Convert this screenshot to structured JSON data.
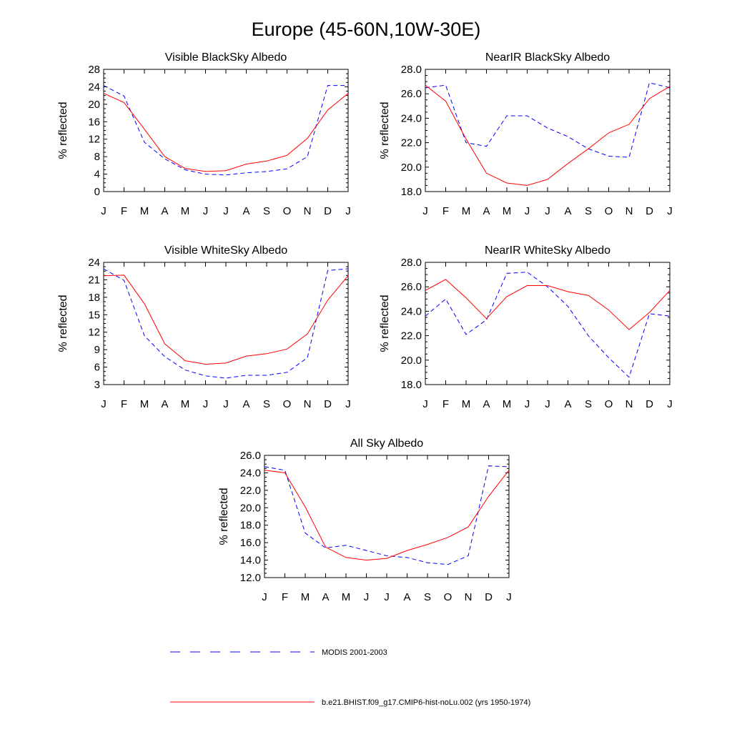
{
  "figure": {
    "title": "Europe (45-60N,10W-30E)",
    "legend": [
      {
        "label": "MODIS 2001-2003",
        "color": "#0000ff",
        "dash": true
      },
      {
        "label": "b.e21.BHIST.f09_g17.CMIP6-hist-noLu.002 (yrs 1950-1974)",
        "color": "#ff0000",
        "dash": false
      }
    ]
  },
  "chart_data": [
    {
      "type": "line",
      "title": "Visible BlackSky Albedo",
      "ylabel": "% reflected",
      "categories": [
        "J",
        "F",
        "M",
        "A",
        "M",
        "J",
        "J",
        "A",
        "S",
        "O",
        "N",
        "D",
        "J"
      ],
      "ylim": [
        0,
        28
      ],
      "yticks": [
        "0",
        "4",
        "8",
        "12",
        "16",
        "20",
        "24",
        "28"
      ],
      "series": [
        {
          "name": "MODIS 2001-2003",
          "color": "#0000ff",
          "dash": true,
          "values": [
            24.3,
            21.9,
            11.3,
            7.5,
            5.0,
            4.0,
            3.8,
            4.3,
            4.6,
            5.2,
            8.0,
            24.3,
            24.3
          ]
        },
        {
          "name": "b.e21.BHIST.f09_g17.CMIP6-hist-noLu.002 (yrs 1950-1974)",
          "color": "#ff0000",
          "dash": false,
          "values": [
            22.5,
            20.4,
            14.3,
            8.0,
            5.3,
            4.6,
            4.8,
            6.3,
            7.0,
            8.3,
            12.2,
            18.7,
            22.5
          ]
        }
      ]
    },
    {
      "type": "line",
      "title": "NearIR BlackSky Albedo",
      "ylabel": "% reflected",
      "categories": [
        "J",
        "F",
        "M",
        "A",
        "M",
        "J",
        "J",
        "A",
        "S",
        "O",
        "N",
        "D",
        "J"
      ],
      "ylim": [
        18,
        28
      ],
      "yticks": [
        "18.0",
        "20.0",
        "22.0",
        "24.0",
        "26.0",
        "28.0"
      ],
      "series": [
        {
          "name": "MODIS 2001-2003",
          "color": "#0000ff",
          "dash": true,
          "values": [
            26.5,
            26.7,
            22.0,
            21.7,
            24.2,
            24.2,
            23.2,
            22.5,
            21.5,
            20.9,
            20.8,
            26.9,
            26.5
          ]
        },
        {
          "name": "b.e21.BHIST.f09_g17.CMIP6-hist-noLu.002 (yrs 1950-1974)",
          "color": "#ff0000",
          "dash": false,
          "values": [
            26.7,
            25.4,
            22.3,
            19.5,
            18.7,
            18.5,
            19.0,
            20.3,
            21.5,
            22.8,
            23.5,
            25.6,
            26.6
          ]
        }
      ]
    },
    {
      "type": "line",
      "title": "Visible WhiteSky Albedo",
      "ylabel": "% reflected",
      "categories": [
        "J",
        "F",
        "M",
        "A",
        "M",
        "J",
        "J",
        "A",
        "S",
        "O",
        "N",
        "D",
        "J"
      ],
      "ylim": [
        3,
        24
      ],
      "yticks": [
        "3",
        "6",
        "9",
        "12",
        "15",
        "18",
        "21",
        "24"
      ],
      "series": [
        {
          "name": "MODIS 2001-2003",
          "color": "#0000ff",
          "dash": true,
          "values": [
            22.9,
            20.9,
            11.4,
            7.8,
            5.5,
            4.5,
            4.1,
            4.6,
            4.6,
            5.1,
            7.6,
            22.6,
            22.9
          ]
        },
        {
          "name": "b.e21.BHIST.f09_g17.CMIP6-hist-noLu.002 (yrs 1950-1974)",
          "color": "#ff0000",
          "dash": false,
          "values": [
            21.7,
            21.8,
            16.9,
            10.0,
            7.1,
            6.5,
            6.7,
            7.9,
            8.3,
            9.1,
            11.7,
            17.5,
            21.7
          ]
        }
      ]
    },
    {
      "type": "line",
      "title": "NearIR WhiteSky Albedo",
      "ylabel": "% reflected",
      "categories": [
        "J",
        "F",
        "M",
        "A",
        "M",
        "J",
        "J",
        "A",
        "S",
        "O",
        "N",
        "D",
        "J"
      ],
      "ylim": [
        18,
        28
      ],
      "yticks": [
        "18.0",
        "20.0",
        "22.0",
        "24.0",
        "26.0",
        "28.0"
      ],
      "series": [
        {
          "name": "MODIS 2001-2003",
          "color": "#0000ff",
          "dash": true,
          "values": [
            23.6,
            25.0,
            22.1,
            23.3,
            27.1,
            27.2,
            26.0,
            24.4,
            22.0,
            20.2,
            18.6,
            23.8,
            23.6
          ]
        },
        {
          "name": "b.e21.BHIST.f09_g17.CMIP6-hist-noLu.002 (yrs 1950-1974)",
          "color": "#ff0000",
          "dash": false,
          "values": [
            25.7,
            26.6,
            25.1,
            23.4,
            25.2,
            26.1,
            26.1,
            25.6,
            25.3,
            24.1,
            22.5,
            23.9,
            25.7
          ]
        }
      ]
    },
    {
      "type": "line",
      "title": "All Sky Albedo",
      "ylabel": "% reflected",
      "categories": [
        "J",
        "F",
        "M",
        "A",
        "M",
        "J",
        "J",
        "A",
        "S",
        "O",
        "N",
        "D",
        "J"
      ],
      "ylim": [
        12,
        26
      ],
      "yticks": [
        "12.0",
        "14.0",
        "16.0",
        "18.0",
        "20.0",
        "22.0",
        "24.0",
        "26.0"
      ],
      "series": [
        {
          "name": "MODIS 2001-2003",
          "color": "#0000ff",
          "dash": true,
          "values": [
            24.7,
            24.3,
            17.1,
            15.4,
            15.7,
            15.1,
            14.5,
            14.3,
            13.7,
            13.5,
            14.5,
            24.8,
            24.7
          ]
        },
        {
          "name": "b.e21.BHIST.f09_g17.CMIP6-hist-noLu.002 (yrs 1950-1974)",
          "color": "#ff0000",
          "dash": false,
          "values": [
            24.3,
            24.0,
            20.1,
            15.5,
            14.3,
            14.0,
            14.2,
            15.1,
            15.8,
            16.6,
            17.8,
            21.3,
            24.3
          ]
        }
      ]
    }
  ]
}
